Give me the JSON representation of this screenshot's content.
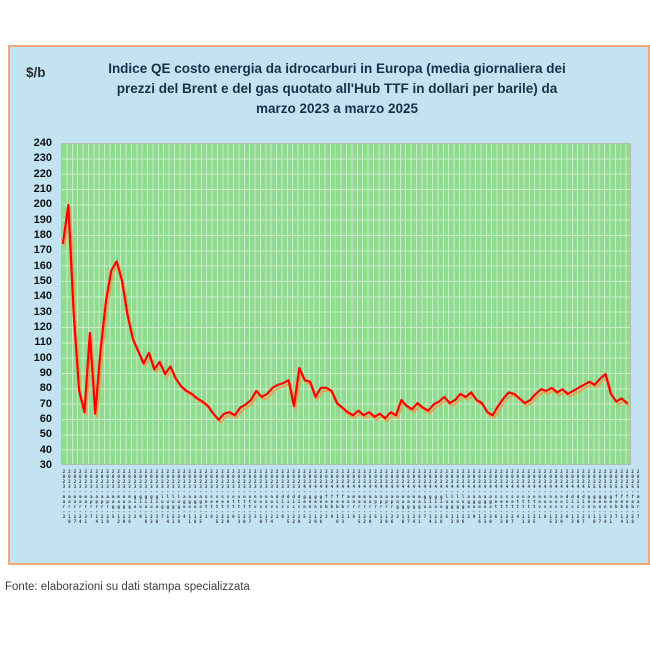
{
  "chart": {
    "unit_label": "$/b",
    "title": "Indice QE costo energia da idrocarburi in Europa (media giornaliera dei prezzi del Brent e del gas quotato all'Hub TTF in dollari per barile) da marzo 2023 a marzo 2025"
  },
  "footer": {
    "source": "Fonte: elaborazioni su dati stampa specializzata"
  },
  "chart_data": {
    "type": "line",
    "title": "Indice QE costo energia da idrocarburi in Europa (media giornaliera dei prezzi del Brent e del gas quotato all'Hub TTF in dollari per barile) da marzo 2023 a marzo 2025",
    "xlabel": "",
    "ylabel": "$/b",
    "ylim": [
      30,
      240
    ],
    "ytick_step": 10,
    "yticks": [
      "240",
      "230",
      "220",
      "210",
      "200",
      "190",
      "180",
      "170",
      "160",
      "150",
      "140",
      "130",
      "120",
      "110",
      "100",
      "90",
      "80",
      "70",
      "60",
      "50",
      "40",
      "30"
    ],
    "grid": true,
    "legend_position": "none",
    "plot_bg": "#90db90",
    "grid_color": "#c9efc9",
    "panel_bg": "#c3e3f3",
    "panel_border": "#f2a878",
    "shadow_color": "#f79646",
    "x": [
      "2023-mar-3",
      "2023-mar-10",
      "2023-mar-17",
      "2023-mar-24",
      "2023-mar-31",
      "2023-apr-7",
      "2023-apr-14",
      "2023-apr-21",
      "2023-apr-28",
      "2023-mag-5",
      "2023-mag-12",
      "2023-mag-19",
      "2023-mag-26",
      "2023-giu-2",
      "2023-giu-9",
      "2023-giu-16",
      "2023-giu-23",
      "2023-giu-30",
      "2023-lug-7",
      "2023-lug-14",
      "2023-lug-21",
      "2023-lug-28",
      "2023-ago-4",
      "2023-ago-11",
      "2023-ago-18",
      "2023-ago-25",
      "2023-set-1",
      "2023-set-8",
      "2023-set-15",
      "2023-set-22",
      "2023-set-29",
      "2023-ott-6",
      "2023-ott-13",
      "2023-ott-20",
      "2023-ott-27",
      "2023-nov-3",
      "2023-nov-10",
      "2023-nov-17",
      "2023-nov-24",
      "2023-dic-1",
      "2023-dic-8",
      "2023-dic-15",
      "2023-dic-22",
      "2023-dic-29",
      "2024-gen-5",
      "2024-gen-12",
      "2024-gen-19",
      "2024-gen-26",
      "2024-feb-2",
      "2024-feb-9",
      "2024-feb-16",
      "2024-feb-23",
      "2024-mar-1",
      "2024-mar-8",
      "2024-mar-15",
      "2024-mar-22",
      "2024-mar-29",
      "2024-apr-5",
      "2024-apr-12",
      "2024-apr-19",
      "2024-apr-26",
      "2024-mag-3",
      "2024-mag-10",
      "2024-mag-17",
      "2024-mag-24",
      "2024-mag-31",
      "2024-giu-7",
      "2024-giu-14",
      "2024-giu-21",
      "2024-giu-28",
      "2024-lug-5",
      "2024-lug-12",
      "2024-lug-19",
      "2024-lug-26",
      "2024-ago-2",
      "2024-ago-9",
      "2024-ago-16",
      "2024-ago-23",
      "2024-ago-30",
      "2024-set-6",
      "2024-set-13",
      "2024-set-20",
      "2024-set-27",
      "2024-ott-4",
      "2024-ott-11",
      "2024-ott-18",
      "2024-ott-25",
      "2024-nov-1",
      "2024-nov-8",
      "2024-nov-15",
      "2024-nov-22",
      "2024-nov-29",
      "2024-dic-6",
      "2024-dic-13",
      "2024-dic-20",
      "2024-dic-27",
      "2025-gen-3",
      "2025-gen-10",
      "2025-gen-17",
      "2025-gen-24",
      "2025-gen-31",
      "2025-feb-7",
      "2025-feb-14",
      "2025-feb-21",
      "2025-feb-28",
      "2025-mar-7"
    ],
    "series": [
      {
        "name": "Indice QE",
        "color": "#ff0000",
        "values": [
          175,
          200,
          128,
          78,
          64,
          116,
          63,
          105,
          137,
          157,
          163,
          150,
          128,
          112,
          104,
          96,
          103,
          92,
          97,
          89,
          94,
          86,
          81,
          78,
          76,
          73,
          71,
          68,
          63,
          59,
          63,
          64,
          62,
          67,
          69,
          72,
          78,
          74,
          76,
          80,
          82,
          83,
          85,
          68,
          93,
          85,
          84,
          74,
          80,
          80,
          78,
          70,
          67,
          64,
          62,
          65,
          62,
          64,
          61,
          63,
          60,
          64,
          62,
          72,
          68,
          66,
          70,
          67,
          65,
          69,
          71,
          74,
          70,
          72,
          76,
          74,
          77,
          72,
          70,
          64,
          62,
          68,
          73,
          77,
          76,
          73,
          70,
          72,
          76,
          79,
          78,
          80,
          77,
          79,
          76,
          78,
          80,
          82,
          84,
          82,
          86,
          89,
          76,
          71,
          73,
          70
        ]
      }
    ]
  }
}
